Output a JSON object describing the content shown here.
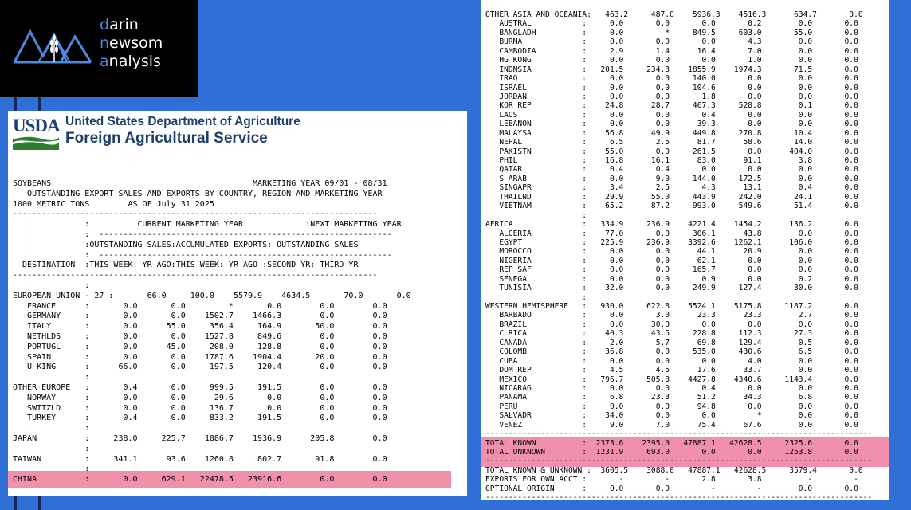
{
  "logo": {
    "line1_hl": "d",
    "line1_rest": "arin",
    "line2_hl": "n",
    "line2_rest": "ewsom",
    "line3_hl": "a",
    "line3_rest": "nalysis"
  },
  "usda": {
    "acronym": "USDA",
    "agency_line1": "United States Department of Agriculture",
    "agency_line2": "Foreign Agricultural Service"
  },
  "colors": {
    "background": "#2f6fd6",
    "highlight": "#ee7d9c",
    "logo_accent": "#4e88e0",
    "usda_blue": "#1a3f7a",
    "usda_green": "#2e7d32"
  },
  "left_report": {
    "header": [
      "SOYBEANS                                          MARKETING YEAR 09/01 - 08/31",
      "   OUTSTANDING EXPORT SALES AND EXPORTS BY COUNTRY, REGION AND MARKETING YEAR",
      "1000 METRIC TONS        AS OF July 31 2025",
      "----------------------------------------------------------------------------",
      "               :          CURRENT MARKETING YEAR             :NEXT MARKETING YEAR",
      "               :  -------------------------------------------------------------",
      "               :OUTSTANDING SALES:ACCUMULATED EXPORTS: OUTSTANDING SALES",
      "               :  -------------------------------------------------------------",
      "  DESTINATION  :THIS WEEK: YR AGO:THIS WEEK: YR AGO :SECOND YR: THIRD YR",
      "----------------------------------------------------------------------------",
      "               :"
    ],
    "rows": [
      "EUROPEAN UNION - 27 :       66.0     100.0    5579.9    4634.5       70.0       0.0",
      "   FRANCE      :       0.0       0.0         *       0.0        0.0        0.0",
      "   GERMANY     :       0.0       0.0    1502.7    1466.3        0.0        0.0",
      "   ITALY       :       0.0      55.0     356.4     164.9       50.0        0.0",
      "   NETHLDS     :       0.0       0.0    1527.8     849.6        0.0        0.0",
      "   PORTUGL     :       0.0      45.0     208.0     128.8        0.0        0.0",
      "   SPAIN       :       0.0       0.0    1787.6    1904.4       20.0        0.0",
      "   U KING      :      66.0       0.0     197.5     120.4        0.0        0.0",
      "               :",
      "OTHER EUROPE   :       0.4       0.0     999.5     191.5        0.0        0.0",
      "   NORWAY      :       0.0       0.0      29.6       0.0        0.0        0.0",
      "   SWITZLD     :       0.0       0.0     136.7       0.0        0.0        0.0",
      "   TURKEY      :       0.4       0.0     833.2     191.5        0.0        0.0",
      "               :",
      "JAPAN          :     238.0     225.7    1886.7    1936.9      205.8        0.0",
      "               :",
      "TAIWAN         :     341.1      93.6    1260.8     802.7       91.8        0.0",
      "               :",
      "CHINA          :       0.0     629.1   22478.5   23916.6        0.0        0.0"
    ]
  },
  "right_report": {
    "rows": [
      "OTHER ASIA AND OCEANIA:   463.2     487.0    5936.3    4516.3      634.7       0.0",
      "   AUSTRAL           :     0.0       0.0       0.0       0.2        0.0       0.0",
      "   BANGLADH          :     0.0         *     849.5     603.0       55.0       0.0",
      "   BURMA             :     0.0       0.0       0.0       4.3        0.0       0.0",
      "   CAMBODIA          :     2.9       1.4      16.4       7.0        0.0       0.0",
      "   HG KONG           :     0.0       0.0       0.0       1.0        0.0       0.0",
      "   INDNSIA           :   201.5     234.3    1855.9    1974.3       71.5       0.0",
      "   IRAQ              :     0.0       0.0     140.0       0.0        0.0       0.0",
      "   ISRAEL            :     0.0       0.0     104.6       0.0        0.0       0.0",
      "   JORDAN            :     0.0       0.0       1.8       0.0        0.0       0.0",
      "   KOR REP           :    24.8      28.7     467.3     528.8        0.1       0.0",
      "   LAOS              :     0.0       0.0       0.4       0.0        0.0       0.0",
      "   LEBANON           :     0.0       0.0      39.3       0.0        0.0       0.0",
      "   MALAYSA           :    56.8      49.9     449.8     270.8       10.4       0.0",
      "   NEPAL             :     6.5       2.5      81.7      58.6       14.0       0.0",
      "   PAKISTN           :    55.0       0.0     261.5       0.0      404.0       0.0",
      "   PHIL              :    16.8      16.1      83.0      91.1        3.8       0.0",
      "   QATAR             :     0.4       0.4       0.0       0.0        0.0       0.0",
      "   S ARAB            :     0.0       9.0     144.0     172.5        0.0       0.0",
      "   SINGAPR           :     3.4       2.5       4.3      13.1        0.4       0.0",
      "   THAILND           :    29.9      55.0     443.9     242.0       24.1       0.0",
      "   VIETNAM           :    65.2      87.2     993.0     549.6       51.4       0.0",
      "                     :",
      "AFRICA               :   334.9     236.9    4221.4    1454.2      136.2       0.0",
      "   ALGERIA           :    77.0       0.0     306.1      43.8        0.0       0.0",
      "   EGYPT             :   225.9     236.9    3392.6    1262.1      106.0       0.0",
      "   MOROCCO           :     0.0       0.0      44.1      20.9        0.0       0.0",
      "   NIGERIA           :     0.0       0.0      62.1       0.0        0.0       0.0",
      "   REP SAF           :     0.0       0.0     165.7       0.0        0.0       0.0",
      "   SENEGAL           :     0.0       0.0       0.9       0.0        0.2       0.0",
      "   TUNISIA           :    32.0       0.0     249.9     127.4       30.0       0.0",
      "                     :",
      "WESTERN HEMISPHERE   :   930.0     622.8    5524.1    5175.8     1187.2       0.0",
      "   BARBADO           :     0.0       3.0      23.3      23.3        2.7       0.0",
      "   BRAZIL            :     0.0      30.0       0.0       0.0        0.0       0.0",
      "   C RICA            :    40.3      43.5     228.8     112.3       27.3       0.0",
      "   CANADA            :     2.0       5.7      69.8     129.4        0.5       0.0",
      "   COLOMB            :    36.8       0.0     535.0     430.6        6.5       0.0",
      "   CUBA              :     0.0       0.0       0.0       4.0        0.0       0.0",
      "   DOM REP           :     4.5       4.5      17.6      33.7        0.0       0.0",
      "   MEXICO            :   796.7     505.8    4427.8    4340.6     1143.4       0.0",
      "   NICARAG           :     0.0       0.0       0.4       0.0        0.0       0.0",
      "   PANAMA            :     6.8      23.3      51.2      34.3        6.8       0.0",
      "   PERU              :     0.0       0.0      94.8       0.0        0.0       0.0",
      "   SALVADR           :    34.0       0.0       0.0         *        0.0       0.0",
      "   VENEZ             :     9.0       7.0      75.4      67.6        0.0       0.0",
      "------------------------------------------------------------------------------------",
      "TOTAL KNOWN          :  2373.6    2395.0   47887.1   42628.5     2325.6       0.0",
      "TOTAL UNKNOWN        :  1231.9     693.0       0.0       0.0     1253.8       0.0",
      "------------------------------------------------------------------------------------",
      "TOTAL KNOWN & UNKNOWN :  3605.5    3088.0   47887.1   42628.5     3579.4       0.0",
      "EXPORTS FOR OWN ACCT :       -         -       2.8       3.8          -         -",
      "OPTIONAL ORIGIN      :     0.0       0.0         -         -        0.0       0.0",
      "------------------------------------------------------------------------------------"
    ]
  }
}
